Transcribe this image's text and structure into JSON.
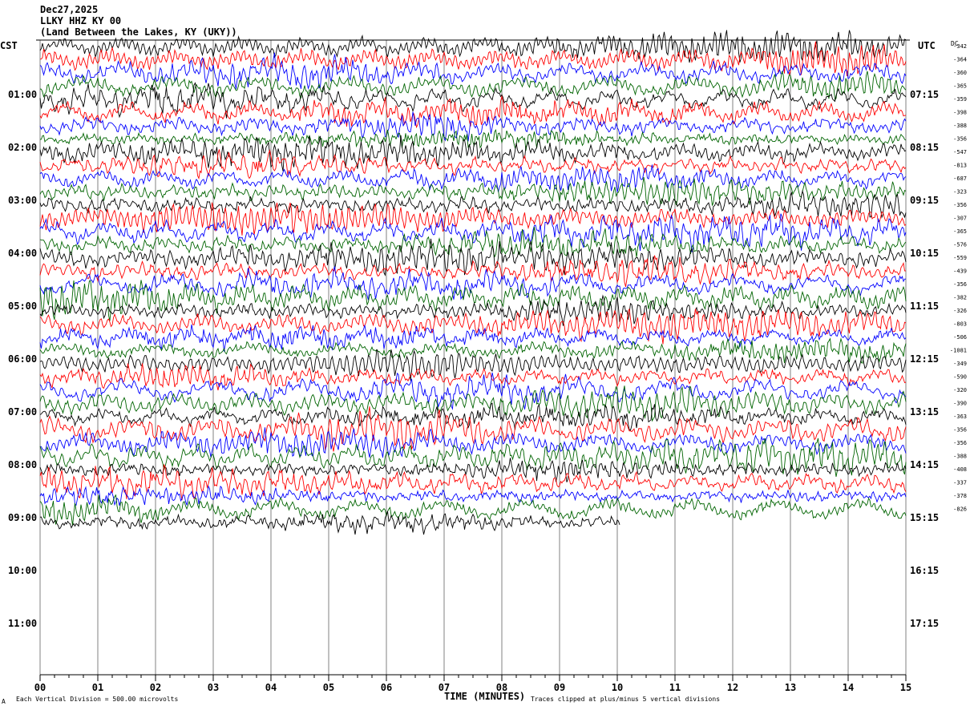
{
  "header": {
    "date": "Dec27,2025",
    "station": "LLKY HHZ KY 00",
    "location": "(Land Between the Lakes, KY (UKY))"
  },
  "left_zone_label": "CST",
  "right_zone_label": "UTC",
  "dc_label": "DC",
  "footer": {
    "scale_note": "Each Vertical Division =  500.00 microvolts",
    "xlabel": "TIME (MINUTES)",
    "clip_note": "Traces clipped at plus/minus 5 vertical divisions",
    "corner_mark": "A"
  },
  "colors": {
    "trace_cycle": [
      "#000000",
      "#ff0000",
      "#0000ff",
      "#006400"
    ],
    "grid": "#808080",
    "frame": "#000000"
  },
  "chart_data": {
    "type": "line",
    "title": "",
    "xlabel": "TIME (MINUTES)",
    "xlim": [
      0,
      15
    ],
    "x_ticks": [
      "00",
      "01",
      "02",
      "03",
      "04",
      "05",
      "06",
      "07",
      "08",
      "09",
      "10",
      "11",
      "12",
      "13",
      "14",
      "15"
    ],
    "left_hour_labels": [
      "01:00",
      "02:00",
      "03:00",
      "04:00",
      "05:00",
      "06:00",
      "07:00",
      "08:00",
      "09:00",
      "10:00",
      "11:00"
    ],
    "right_hour_labels": [
      "07:15",
      "08:15",
      "09:15",
      "10:15",
      "11:15",
      "12:15",
      "13:15",
      "14:15",
      "15:15",
      "16:15",
      "17:15"
    ],
    "traces_per_hour": 4,
    "trace_count": 37,
    "last_trace_fraction": 0.67,
    "dc_offsets": [
      "-342",
      "-364",
      "-360",
      "-365",
      "-359",
      "-398",
      "-388",
      "-356",
      "-547",
      "-813",
      "-687",
      "-323",
      "-356",
      "-307",
      "-365",
      "-576",
      "-559",
      "-439",
      "-356",
      "-382",
      "-326",
      "-803",
      "-506",
      "-1081",
      "-349",
      "-590",
      "-320",
      "-390",
      "-363",
      "-356",
      "-356",
      "-388",
      "-408",
      "-337",
      "-378",
      "-826"
    ],
    "y_unit": "microvolts",
    "division_size": 500.0,
    "clip_divisions": 5,
    "grid": true
  }
}
